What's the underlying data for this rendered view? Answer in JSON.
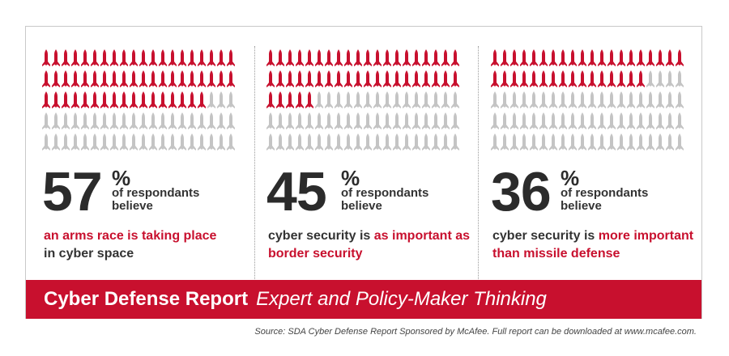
{
  "chart_data": {
    "type": "pictogram",
    "icons_total": 100,
    "icon_name": "missile-icon",
    "colors": {
      "filled": "#c8102e",
      "empty": "#c4c4c4"
    },
    "panels": [
      {
        "value": 57,
        "percent_sign": "%",
        "caption": "of respondants believe",
        "statement_red": "an arms race is taking place",
        "statement_dark": "in cyber space"
      },
      {
        "value": 45,
        "percent_sign": "%",
        "caption": "of respondants believe",
        "statement_dark": "cyber security is",
        "statement_red": "as important as border security"
      },
      {
        "value": 36,
        "percent_sign": "%",
        "caption": "of respondants believe",
        "statement_dark": "cyber security is",
        "statement_red": "more important than missile defense"
      }
    ]
  },
  "banner": {
    "bold": "Cyber Defense Report",
    "italic": "Expert and Policy-Maker Thinking",
    "color": "#c8102e"
  },
  "source": "Source: SDA Cyber Defense Report Sponsored by McAfee. Full report can be downloaded at www.mcafee.com."
}
